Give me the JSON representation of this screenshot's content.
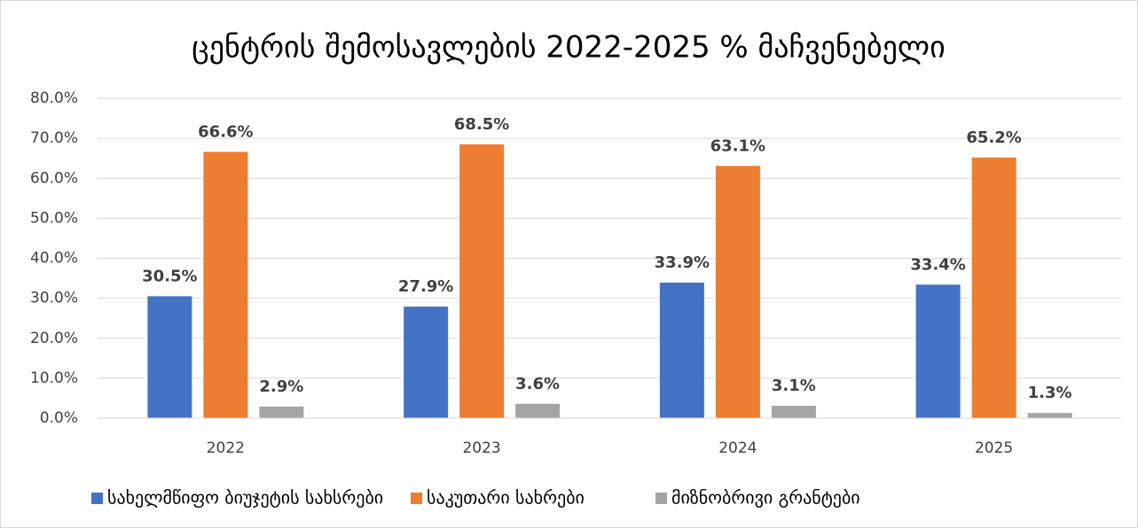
{
  "chart_data": {
    "type": "bar",
    "title": "ცენტრის შემოსავლების 2022-2025 % მაჩვენებელი",
    "categories": [
      "2022",
      "2023",
      "2024",
      "2025"
    ],
    "series": [
      {
        "name": "სახელმწიფო ბიუჯეტის სახსრები",
        "color": "#4472c4",
        "values": [
          30.5,
          27.9,
          33.9,
          33.4
        ],
        "value_labels": [
          "30.5%",
          "27.9%",
          "33.9%",
          "33.4%"
        ]
      },
      {
        "name": "საკუთარი სახრები",
        "color": "#ed7d31",
        "values": [
          66.6,
          68.5,
          63.1,
          65.2
        ],
        "value_labels": [
          "66.6%",
          "68.5%",
          "63.1%",
          "65.2%"
        ]
      },
      {
        "name": "მიზნობრივი გრანტები",
        "color": "#a5a5a5",
        "values": [
          2.9,
          3.6,
          3.1,
          1.3
        ],
        "value_labels": [
          "2.9%",
          "3.6%",
          "3.1%",
          "1.3%"
        ]
      }
    ],
    "ylim": [
      0,
      80
    ],
    "yticks": [
      {
        "value": 0,
        "label": "0.0%"
      },
      {
        "value": 10,
        "label": "10.0%"
      },
      {
        "value": 20,
        "label": "20.0%"
      },
      {
        "value": 30,
        "label": "30.0%"
      },
      {
        "value": 40,
        "label": "40.0%"
      },
      {
        "value": 50,
        "label": "50.0%"
      },
      {
        "value": 60,
        "label": "60.0%"
      },
      {
        "value": 70,
        "label": "70.0%"
      },
      {
        "value": 80,
        "label": "80.0%"
      }
    ],
    "grid": true,
    "legend": "bottom"
  }
}
